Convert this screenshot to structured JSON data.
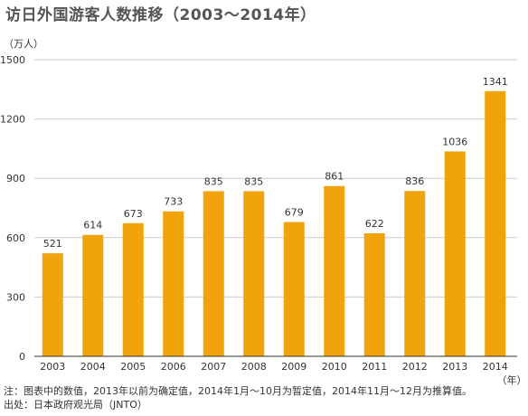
{
  "title": "访日外国游客人数推移（2003～2014年）",
  "ylabel": "（万人）",
  "xunit": "（年）",
  "notes": [
    "注：图表中的数值，2013年以前为确定值，2014年1月～10月为暂定值，2014年11月～12月为推算值。",
    "出处：日本政府观光局（JNTO）"
  ],
  "colors": {
    "bar": "#f0a30a",
    "grid": "#cccccc",
    "axis": "#333333"
  },
  "chart_data": {
    "type": "bar",
    "title": "访日外国游客人数推移（2003～2014年）",
    "ylabel": "（万人）",
    "xlabel": "（年）",
    "categories": [
      "2003",
      "2004",
      "2005",
      "2006",
      "2007",
      "2008",
      "2009",
      "2010",
      "2011",
      "2012",
      "2013",
      "2014"
    ],
    "values": [
      521,
      614,
      673,
      733,
      835,
      835,
      679,
      861,
      622,
      836,
      1036,
      1341
    ],
    "ylim": [
      0,
      1500
    ],
    "yticks": [
      0,
      300,
      600,
      900,
      1200,
      1500
    ],
    "grid": true,
    "legend": "none"
  }
}
